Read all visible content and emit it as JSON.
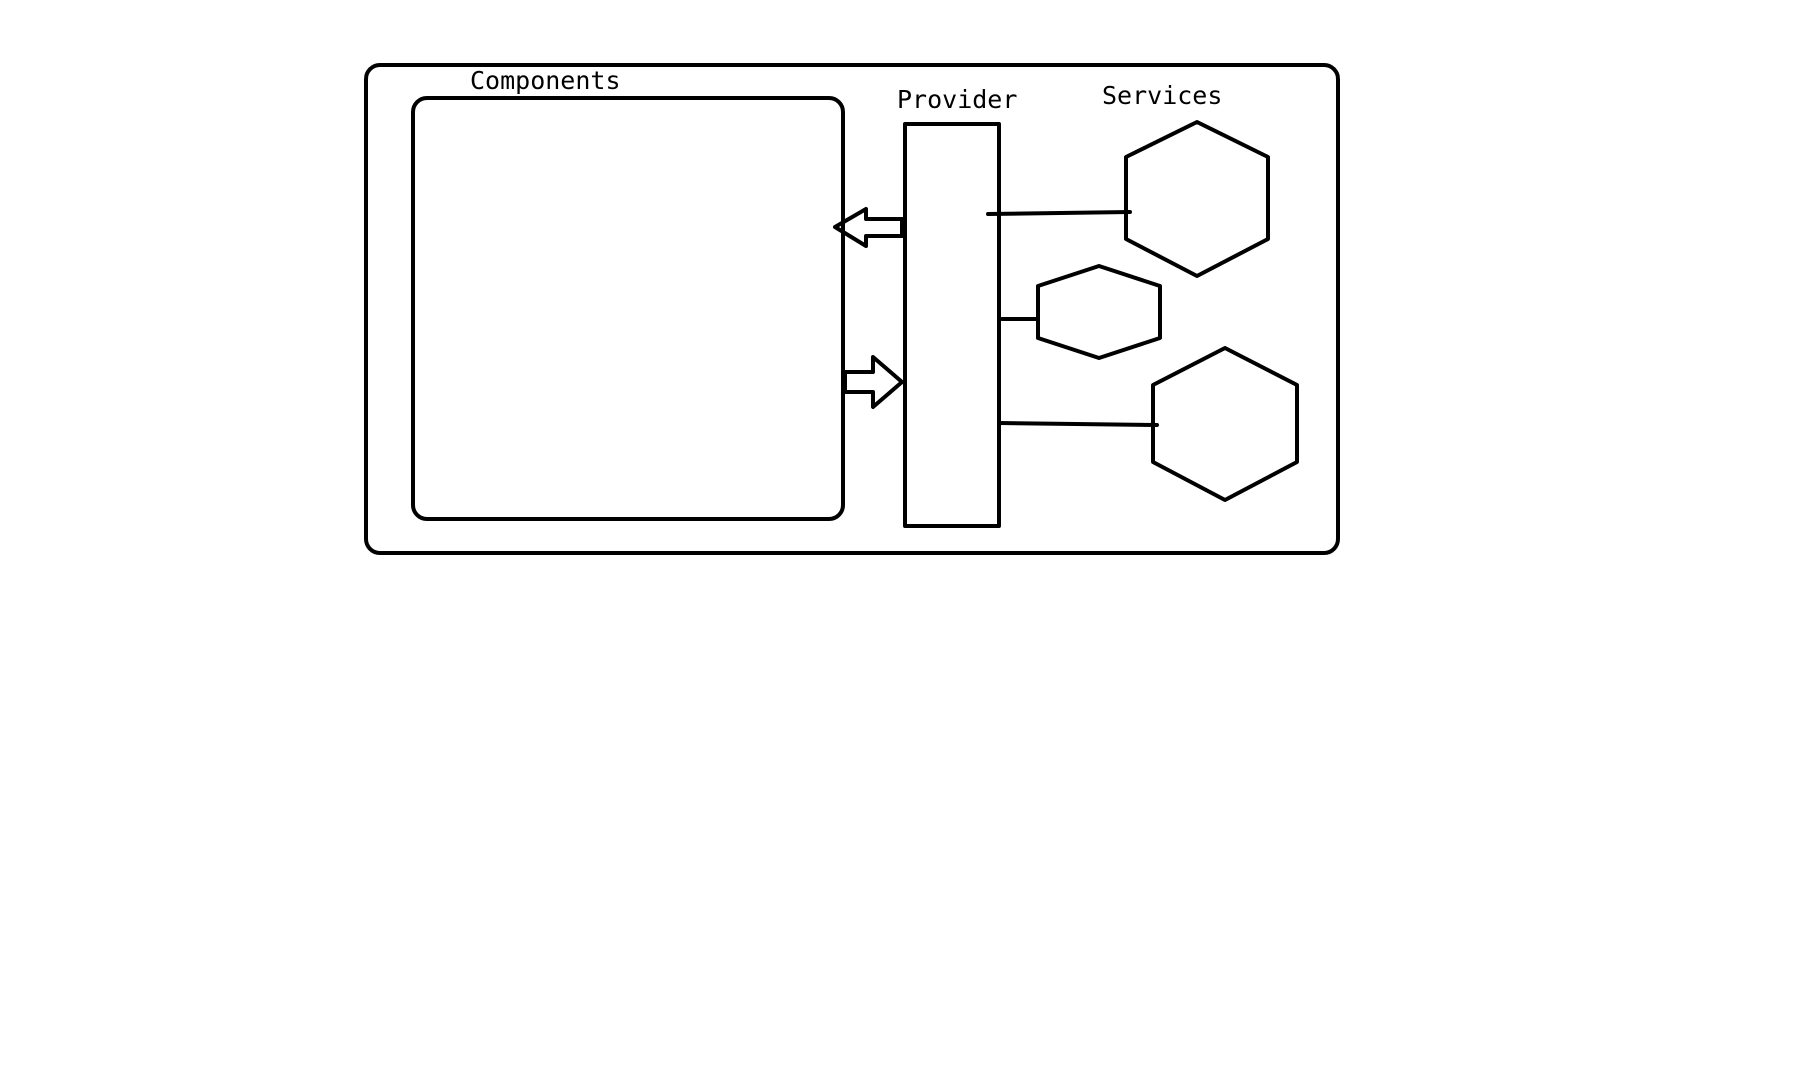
{
  "diagram": {
    "components_label": "Components",
    "provider_label": "Provider",
    "services_label": "Services"
  }
}
